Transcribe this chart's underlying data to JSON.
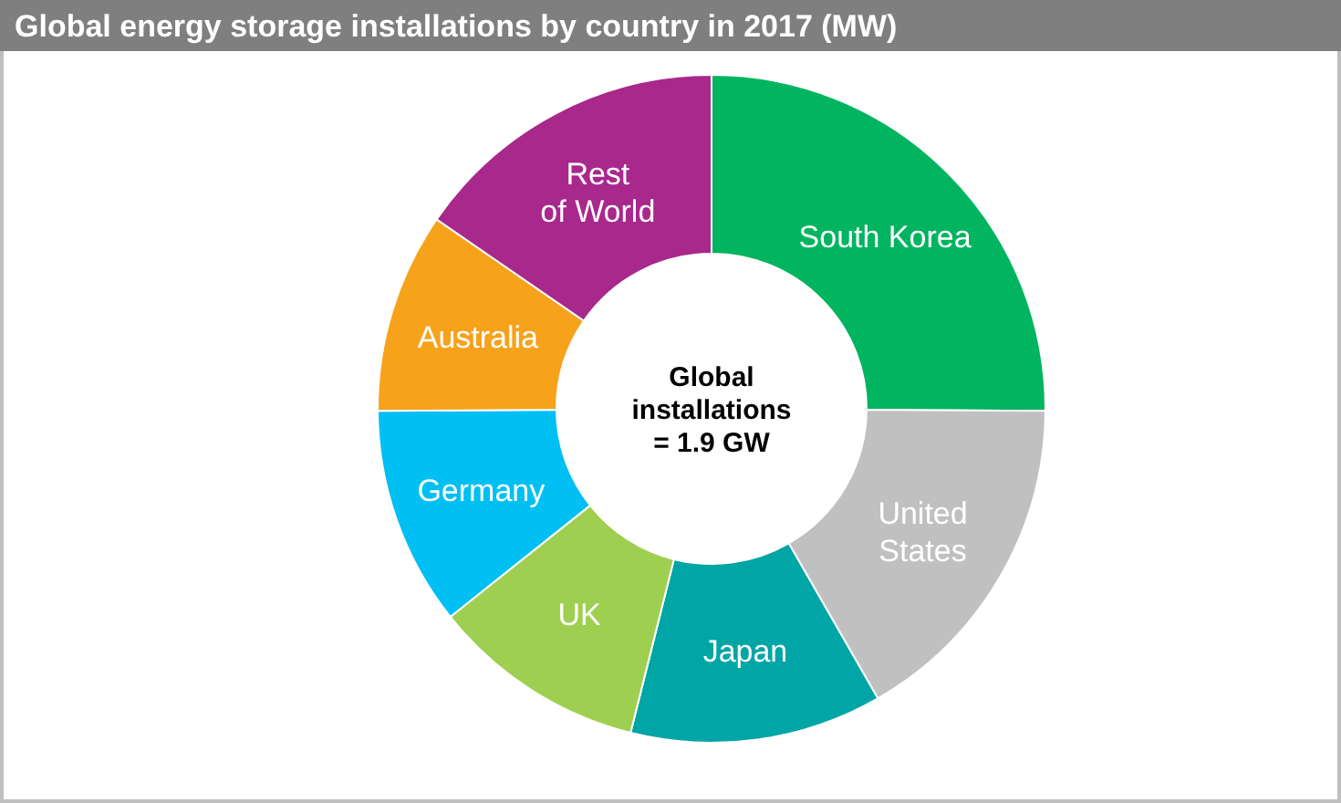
{
  "chart_data": {
    "type": "donut",
    "title": "Global energy storage installations by country in 2017 (MW)",
    "categories": [
      "South Korea",
      "United States",
      "Japan",
      "UK",
      "Germany",
      "Australia",
      "Rest of World"
    ],
    "values": [
      25.1,
      16.6,
      12.2,
      10.4,
      10.6,
      9.7,
      15.4
    ],
    "colors": [
      "#00b460",
      "#c0c0c0",
      "#00a5a5",
      "#9fcf50",
      "#00bff3",
      "#f7a21b",
      "#a8288c"
    ],
    "annotations": [
      "Global\ninstallations\n= 1.9 GW"
    ]
  }
}
